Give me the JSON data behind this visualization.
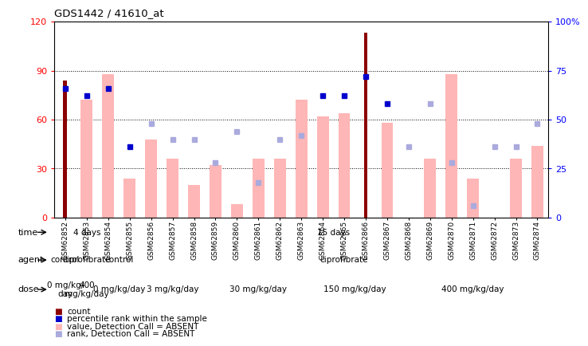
{
  "title": "GDS1442 / 41610_at",
  "samples": [
    "GSM62852",
    "GSM62853",
    "GSM62854",
    "GSM62855",
    "GSM62856",
    "GSM62857",
    "GSM62858",
    "GSM62859",
    "GSM62860",
    "GSM62861",
    "GSM62862",
    "GSM62863",
    "GSM62864",
    "GSM62865",
    "GSM62866",
    "GSM62867",
    "GSM62868",
    "GSM62869",
    "GSM62870",
    "GSM62871",
    "GSM62872",
    "GSM62873",
    "GSM62874"
  ],
  "count_values": [
    84,
    0,
    0,
    0,
    0,
    0,
    0,
    0,
    0,
    0,
    0,
    0,
    0,
    0,
    113,
    0,
    0,
    0,
    0,
    0,
    0,
    0,
    0
  ],
  "pink_bar_values": [
    0,
    72,
    88,
    24,
    48,
    36,
    20,
    32,
    8,
    36,
    36,
    72,
    62,
    64,
    0,
    58,
    0,
    36,
    88,
    24,
    0,
    36,
    44
  ],
  "blue_sq_absent": [
    0,
    0,
    0,
    0,
    48,
    40,
    40,
    28,
    44,
    18,
    40,
    42,
    0,
    0,
    0,
    0,
    36,
    58,
    28,
    6,
    36,
    36,
    48
  ],
  "blue_sq_present": [
    66,
    62,
    66,
    36,
    0,
    0,
    0,
    0,
    0,
    0,
    0,
    0,
    62,
    62,
    72,
    58,
    0,
    0,
    0,
    0,
    0,
    0,
    0
  ],
  "ylim_left": [
    0,
    120
  ],
  "yticks_left": [
    0,
    30,
    60,
    90,
    120
  ],
  "yticks_right": [
    0,
    25,
    50,
    75,
    100
  ],
  "ytick_labels_right": [
    "0",
    "25",
    "50",
    "75",
    "100%"
  ],
  "color_darkred": "#8B0000",
  "color_pink": "#FFB6B6",
  "color_blue_dark": "#0000CC",
  "color_blue_light": "#AAAADD",
  "time_groups": [
    {
      "label": "4 days",
      "start": 0,
      "end": 2,
      "color": "#99DD88"
    },
    {
      "label": "15 days",
      "start": 3,
      "end": 22,
      "color": "#66CC55"
    }
  ],
  "agent_groups": [
    {
      "label": "control",
      "start": 0,
      "end": 0,
      "color": "#AAAAEE"
    },
    {
      "label": "ciprofibrate",
      "start": 1,
      "end": 1,
      "color": "#CCCCFF"
    },
    {
      "label": "control",
      "start": 2,
      "end": 3,
      "color": "#AAAAEE"
    },
    {
      "label": "ciprofibrate",
      "start": 4,
      "end": 22,
      "color": "#7777CC"
    }
  ],
  "dose_groups": [
    {
      "label": "0 mg/kg/\nday",
      "start": 0,
      "end": 0,
      "color": "#F2F2F2"
    },
    {
      "label": "400\nmg/kg/day",
      "start": 1,
      "end": 1,
      "color": "#FFAAAA"
    },
    {
      "label": "0 mg/kg/day",
      "start": 2,
      "end": 3,
      "color": "#F2F2F2"
    },
    {
      "label": "3 mg/kg/day",
      "start": 4,
      "end": 6,
      "color": "#FFCCCC"
    },
    {
      "label": "30 mg/kg/day",
      "start": 7,
      "end": 11,
      "color": "#FFBBBB"
    },
    {
      "label": "150 mg/kg/day",
      "start": 12,
      "end": 15,
      "color": "#FF9999"
    },
    {
      "label": "400 mg/kg/day",
      "start": 16,
      "end": 22,
      "color": "#CC8877"
    }
  ],
  "legend_items": [
    {
      "color": "#8B0000",
      "label": "count"
    },
    {
      "color": "#0000CC",
      "label": "percentile rank within the sample"
    },
    {
      "color": "#FFB6B6",
      "label": "value, Detection Call = ABSENT"
    },
    {
      "color": "#AAAADD",
      "label": "rank, Detection Call = ABSENT"
    }
  ]
}
